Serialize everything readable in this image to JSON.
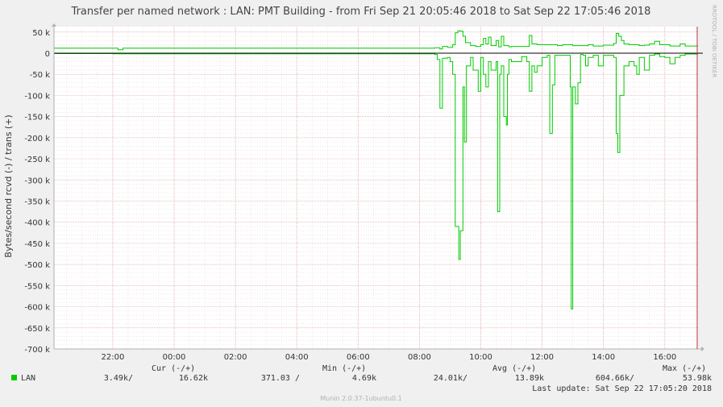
{
  "title": "Transfer per named network : LAN: PMT Building - from Fri Sep 21 20:05:46 2018 to Sat Sep 22 17:05:46 2018",
  "side_text": "RRDTOOL / TOBI OETIKER",
  "footer": "Munin 2.0.37-1ubuntu0.1",
  "colors": {
    "series": "#00cc00",
    "background": "#f0f0f0",
    "plot": "#ffffff",
    "grid_minor": "#e6c8c8",
    "axis": "#000000"
  },
  "chart_data": {
    "type": "line",
    "ylabel": "Bytes/second rcvd (-) / trans (+)",
    "ylim": [
      -700000,
      60000
    ],
    "yticks": [
      {
        "v": 50000,
        "label": "50 k"
      },
      {
        "v": 0,
        "label": "0"
      },
      {
        "v": -50000,
        "label": "-50 k"
      },
      {
        "v": -100000,
        "label": "-100 k"
      },
      {
        "v": -150000,
        "label": "-150 k"
      },
      {
        "v": -200000,
        "label": "-200 k"
      },
      {
        "v": -250000,
        "label": "-250 k"
      },
      {
        "v": -300000,
        "label": "-300 k"
      },
      {
        "v": -350000,
        "label": "-350 k"
      },
      {
        "v": -400000,
        "label": "-400 k"
      },
      {
        "v": -450000,
        "label": "-450 k"
      },
      {
        "v": -500000,
        "label": "-500 k"
      },
      {
        "v": -550000,
        "label": "-550 k"
      },
      {
        "v": -600000,
        "label": "-600 k"
      },
      {
        "v": -650000,
        "label": "-650 k"
      },
      {
        "v": -700000,
        "label": "-700 k"
      }
    ],
    "xticks": [
      {
        "t": "2018-09-21 22:00",
        "label": "22:00"
      },
      {
        "t": "2018-09-22 00:00",
        "label": "00:00"
      },
      {
        "t": "2018-09-22 02:00",
        "label": "02:00"
      },
      {
        "t": "2018-09-22 04:00",
        "label": "04:00"
      },
      {
        "t": "2018-09-22 06:00",
        "label": "06:00"
      },
      {
        "t": "2018-09-22 08:00",
        "label": "08:00"
      },
      {
        "t": "2018-09-22 10:00",
        "label": "10:00"
      },
      {
        "t": "2018-09-22 12:00",
        "label": "12:00"
      },
      {
        "t": "2018-09-22 14:00",
        "label": "14:00"
      },
      {
        "t": "2018-09-22 16:00",
        "label": "16:00"
      }
    ],
    "xlim": [
      "2018-09-21 20:05",
      "2018-09-22 17:05"
    ],
    "series": [
      {
        "name": "LAN",
        "color": "#00cc00",
        "trans": [
          [
            "20:05",
            12000
          ],
          [
            "22:00",
            12000
          ],
          [
            "22:10",
            8000
          ],
          [
            "22:20",
            12000
          ],
          [
            "23:00",
            12000
          ],
          [
            "08:00",
            12000
          ],
          [
            "08:30",
            13000
          ],
          [
            "08:40",
            10000
          ],
          [
            "08:45",
            16000
          ],
          [
            "08:55",
            14000
          ],
          [
            "09:05",
            20000
          ],
          [
            "09:10",
            48000
          ],
          [
            "09:15",
            53000
          ],
          [
            "09:20",
            52000
          ],
          [
            "09:25",
            40000
          ],
          [
            "09:30",
            25000
          ],
          [
            "09:40",
            18000
          ],
          [
            "09:50",
            16000
          ],
          [
            "10:00",
            20000
          ],
          [
            "10:05",
            35000
          ],
          [
            "10:10",
            22000
          ],
          [
            "10:15",
            38000
          ],
          [
            "10:20",
            18000
          ],
          [
            "10:30",
            30000
          ],
          [
            "10:35",
            15000
          ],
          [
            "10:40",
            40000
          ],
          [
            "10:45",
            18000
          ],
          [
            "10:55",
            15000
          ],
          [
            "11:00",
            16000
          ],
          [
            "11:30",
            16000
          ],
          [
            "11:35",
            42000
          ],
          [
            "11:40",
            22000
          ],
          [
            "11:50",
            20000
          ],
          [
            "12:30",
            18000
          ],
          [
            "12:40",
            20000
          ],
          [
            "13:00",
            18000
          ],
          [
            "13:30",
            20000
          ],
          [
            "13:40",
            17000
          ],
          [
            "14:00",
            19000
          ],
          [
            "14:20",
            23000
          ],
          [
            "14:25",
            47000
          ],
          [
            "14:30",
            40000
          ],
          [
            "14:35",
            30000
          ],
          [
            "14:40",
            22000
          ],
          [
            "14:50",
            20000
          ],
          [
            "15:10",
            18000
          ],
          [
            "15:20",
            19000
          ],
          [
            "15:30",
            22000
          ],
          [
            "15:40",
            28000
          ],
          [
            "15:50",
            20000
          ],
          [
            "16:10",
            17000
          ],
          [
            "16:30",
            22000
          ],
          [
            "16:40",
            17000
          ],
          [
            "17:05",
            17000
          ]
        ],
        "rcvd": [
          [
            "20:05",
            -1000
          ],
          [
            "22:00",
            -1500
          ],
          [
            "08:30",
            -3000
          ],
          [
            "08:35",
            -15000
          ],
          [
            "08:40",
            -130000
          ],
          [
            "08:42",
            -130000
          ],
          [
            "08:45",
            -12000
          ],
          [
            "08:55",
            -10000
          ],
          [
            "09:00",
            -20000
          ],
          [
            "09:05",
            -50000
          ],
          [
            "09:10",
            -410000
          ],
          [
            "09:15",
            -410000
          ],
          [
            "09:17",
            -488000
          ],
          [
            "09:20",
            -420000
          ],
          [
            "09:25",
            -80000
          ],
          [
            "09:28",
            -210000
          ],
          [
            "09:32",
            -30000
          ],
          [
            "09:40",
            -10000
          ],
          [
            "09:45",
            -40000
          ],
          [
            "09:50",
            -40000
          ],
          [
            "09:55",
            -90000
          ],
          [
            "10:00",
            -10000
          ],
          [
            "10:05",
            -50000
          ],
          [
            "10:10",
            -80000
          ],
          [
            "10:15",
            -20000
          ],
          [
            "10:20",
            -40000
          ],
          [
            "10:25",
            -40000
          ],
          [
            "10:30",
            -20000
          ],
          [
            "10:33",
            -375000
          ],
          [
            "10:37",
            -50000
          ],
          [
            "10:40",
            -30000
          ],
          [
            "10:45",
            -150000
          ],
          [
            "10:50",
            -170000
          ],
          [
            "10:52",
            -50000
          ],
          [
            "10:55",
            -15000
          ],
          [
            "11:00",
            -20000
          ],
          [
            "11:20",
            -8000
          ],
          [
            "11:30",
            -20000
          ],
          [
            "11:35",
            -90000
          ],
          [
            "11:40",
            -30000
          ],
          [
            "11:45",
            -45000
          ],
          [
            "11:50",
            -30000
          ],
          [
            "12:00",
            -10000
          ],
          [
            "12:10",
            -5000
          ],
          [
            "12:15",
            -190000
          ],
          [
            "12:20",
            -75000
          ],
          [
            "12:25",
            -5000
          ],
          [
            "12:40",
            -5000
          ],
          [
            "12:55",
            -80000
          ],
          [
            "12:57",
            -605000
          ],
          [
            "13:00",
            -80000
          ],
          [
            "13:05",
            -120000
          ],
          [
            "13:10",
            -70000
          ],
          [
            "13:15",
            -3000
          ],
          [
            "13:20",
            -5000
          ],
          [
            "13:25",
            -30000
          ],
          [
            "13:30",
            -10000
          ],
          [
            "13:40",
            -5000
          ],
          [
            "13:50",
            -30000
          ],
          [
            "14:00",
            -5000
          ],
          [
            "14:20",
            -10000
          ],
          [
            "14:25",
            -190000
          ],
          [
            "14:28",
            -235000
          ],
          [
            "14:32",
            -100000
          ],
          [
            "14:40",
            -30000
          ],
          [
            "14:50",
            -20000
          ],
          [
            "15:00",
            -30000
          ],
          [
            "15:05",
            -50000
          ],
          [
            "15:10",
            -10000
          ],
          [
            "15:20",
            -40000
          ],
          [
            "15:30",
            -5000
          ],
          [
            "15:40",
            -2000
          ],
          [
            "15:50",
            -8000
          ],
          [
            "16:00",
            -10000
          ],
          [
            "16:10",
            -25000
          ],
          [
            "16:20",
            -10000
          ],
          [
            "16:30",
            -5000
          ],
          [
            "16:40",
            -2000
          ],
          [
            "17:05",
            -2000
          ]
        ]
      }
    ],
    "legend": {
      "headers": {
        "cur": "Cur (-/+)",
        "min": "Min (-/+)",
        "avg": "Avg (-/+)",
        "max": "Max (-/+)"
      },
      "rows": [
        {
          "name": "LAN",
          "cur_rcvd": "3.49k/",
          "cur_trans": "16.62k",
          "min_rcvd": "371.03 /",
          "min_trans": "4.69k",
          "avg_rcvd": "24.01k/",
          "avg_trans": "13.89k",
          "max_rcvd": "604.66k/",
          "max_trans": "53.98k"
        }
      ],
      "last_update": "Last update: Sat Sep 22 17:05:20 2018"
    }
  }
}
